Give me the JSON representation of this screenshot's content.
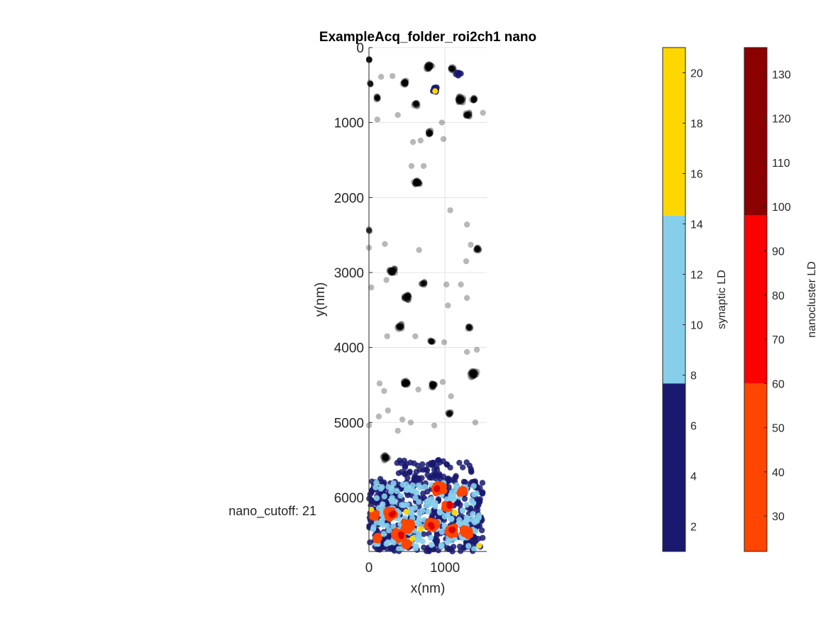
{
  "chart_data": {
    "type": "scatter",
    "title": "ExampleAcq_folder_roi2ch1 nano",
    "xlabel": "x(nm)",
    "ylabel": "y(nm)",
    "xlim": [
      0,
      1550
    ],
    "ylim": [
      0,
      6720
    ],
    "y_reversed": true,
    "grid": true,
    "xticks": [
      0,
      1000
    ],
    "yticks": [
      0,
      1000,
      2000,
      3000,
      4000,
      5000,
      6000
    ],
    "annotation": "nano_cutoff: 21",
    "black_clusters": [
      {
        "x": 0,
        "y": 160,
        "r": 40,
        "n": 10
      },
      {
        "x": 20,
        "y": 480,
        "r": 40,
        "n": 8
      },
      {
        "x": 110,
        "y": 670,
        "r": 55,
        "n": 12
      },
      {
        "x": 470,
        "y": 470,
        "r": 65,
        "n": 22
      },
      {
        "x": 620,
        "y": 760,
        "r": 55,
        "n": 14
      },
      {
        "x": 790,
        "y": 250,
        "r": 85,
        "n": 40
      },
      {
        "x": 1090,
        "y": 290,
        "r": 65,
        "n": 16
      },
      {
        "x": 1200,
        "y": 700,
        "r": 90,
        "n": 35
      },
      {
        "x": 1380,
        "y": 690,
        "r": 60,
        "n": 16
      },
      {
        "x": 1300,
        "y": 900,
        "r": 70,
        "n": 20
      },
      {
        "x": 800,
        "y": 1140,
        "r": 70,
        "n": 18
      },
      {
        "x": 630,
        "y": 1800,
        "r": 80,
        "n": 38
      },
      {
        "x": 0,
        "y": 2440,
        "r": 40,
        "n": 6
      },
      {
        "x": 310,
        "y": 2980,
        "r": 95,
        "n": 34
      },
      {
        "x": 500,
        "y": 3330,
        "r": 90,
        "n": 30
      },
      {
        "x": 720,
        "y": 3140,
        "r": 60,
        "n": 12
      },
      {
        "x": 1430,
        "y": 2690,
        "r": 60,
        "n": 14
      },
      {
        "x": 410,
        "y": 3720,
        "r": 70,
        "n": 20
      },
      {
        "x": 820,
        "y": 3920,
        "r": 60,
        "n": 12
      },
      {
        "x": 1320,
        "y": 3730,
        "r": 60,
        "n": 12
      },
      {
        "x": 480,
        "y": 4470,
        "r": 80,
        "n": 34
      },
      {
        "x": 840,
        "y": 4500,
        "r": 70,
        "n": 24
      },
      {
        "x": 1370,
        "y": 4350,
        "r": 110,
        "n": 38
      },
      {
        "x": 1060,
        "y": 4880,
        "r": 55,
        "n": 12
      },
      {
        "x": 220,
        "y": 5470,
        "r": 95,
        "n": 22
      }
    ],
    "black_scatter_points": [
      [
        160,
        390
      ],
      [
        310,
        380
      ],
      [
        110,
        960
      ],
      [
        380,
        900
      ],
      [
        580,
        1260
      ],
      [
        680,
        1240
      ],
      [
        980,
        1220
      ],
      [
        560,
        1580
      ],
      [
        720,
        1580
      ],
      [
        1070,
        2170
      ],
      [
        1290,
        2360
      ],
      [
        1340,
        2630
      ],
      [
        0,
        2670
      ],
      [
        210,
        2620
      ],
      [
        660,
        2700
      ],
      [
        1280,
        2850
      ],
      [
        30,
        3200
      ],
      [
        230,
        3100
      ],
      [
        1020,
        3160
      ],
      [
        1210,
        3160
      ],
      [
        1290,
        3340
      ],
      [
        1040,
        3440
      ],
      [
        240,
        3850
      ],
      [
        610,
        3850
      ],
      [
        990,
        3930
      ],
      [
        1290,
        4060
      ],
      [
        1420,
        4030
      ],
      [
        140,
        4480
      ],
      [
        200,
        4580
      ],
      [
        650,
        4560
      ],
      [
        970,
        4460
      ],
      [
        130,
        4920
      ],
      [
        250,
        4840
      ],
      [
        440,
        4960
      ],
      [
        0,
        5040
      ],
      [
        860,
        5040
      ],
      [
        1080,
        4650
      ],
      [
        380,
        5110
      ],
      [
        1400,
        5000
      ],
      [
        550,
        5000
      ],
      [
        1500,
        870
      ],
      [
        960,
        1000
      ]
    ],
    "legend_colorbars": [
      {
        "label": "synaptic LD",
        "range": [
          1,
          21
        ],
        "ticks": [
          2,
          4,
          6,
          8,
          10,
          12,
          14,
          16,
          18,
          20
        ],
        "bands": [
          {
            "from": 1,
            "to": 7.67,
            "color": "#191970"
          },
          {
            "from": 7.67,
            "to": 14.33,
            "color": "#87CEEB"
          },
          {
            "from": 14.33,
            "to": 21,
            "color": "#FFD700"
          }
        ]
      },
      {
        "label": "nanocluster LD",
        "range": [
          22,
          136
        ],
        "ticks": [
          30,
          40,
          50,
          60,
          70,
          80,
          90,
          100,
          110,
          120,
          130
        ],
        "bands": [
          {
            "from": 22,
            "to": 60,
            "color": "#FF4500"
          },
          {
            "from": 60,
            "to": 98,
            "color": "#FF0000"
          },
          {
            "from": 98,
            "to": 136,
            "color": "#8B0000"
          }
        ]
      }
    ],
    "colored_region": {
      "x_range": [
        0,
        1500
      ],
      "y_range": [
        5500,
        6720
      ],
      "synaptic_colors": [
        "#191970",
        "#87CEEB",
        "#FFD700"
      ],
      "nanocluster_clusters": [
        {
          "x": 920,
          "y": 5880,
          "r": 120
        },
        {
          "x": 1230,
          "y": 5920,
          "r": 60
        },
        {
          "x": 70,
          "y": 6230,
          "r": 70
        },
        {
          "x": 280,
          "y": 6220,
          "r": 110
        },
        {
          "x": 520,
          "y": 6380,
          "r": 110
        },
        {
          "x": 390,
          "y": 6510,
          "r": 110
        },
        {
          "x": 820,
          "y": 6370,
          "r": 120
        },
        {
          "x": 1040,
          "y": 6120,
          "r": 80
        },
        {
          "x": 1080,
          "y": 6440,
          "r": 110
        },
        {
          "x": 1280,
          "y": 6460,
          "r": 90
        },
        {
          "x": 110,
          "y": 6540,
          "r": 60
        },
        {
          "x": 500,
          "y": 6620,
          "r": 60
        }
      ],
      "dark_red_points": [
        [
          900,
          5880
        ],
        [
          1060,
          6100
        ],
        [
          430,
          6500
        ],
        [
          820,
          6380
        ],
        [
          1100,
          6430
        ],
        [
          310,
          6230
        ]
      ],
      "yellow_points": [
        [
          870,
          580
        ],
        [
          30,
          6160
        ],
        [
          1130,
          6200
        ],
        [
          570,
          6550
        ],
        [
          680,
          6420
        ],
        [
          490,
          6190
        ],
        [
          1450,
          6640
        ]
      ]
    }
  }
}
